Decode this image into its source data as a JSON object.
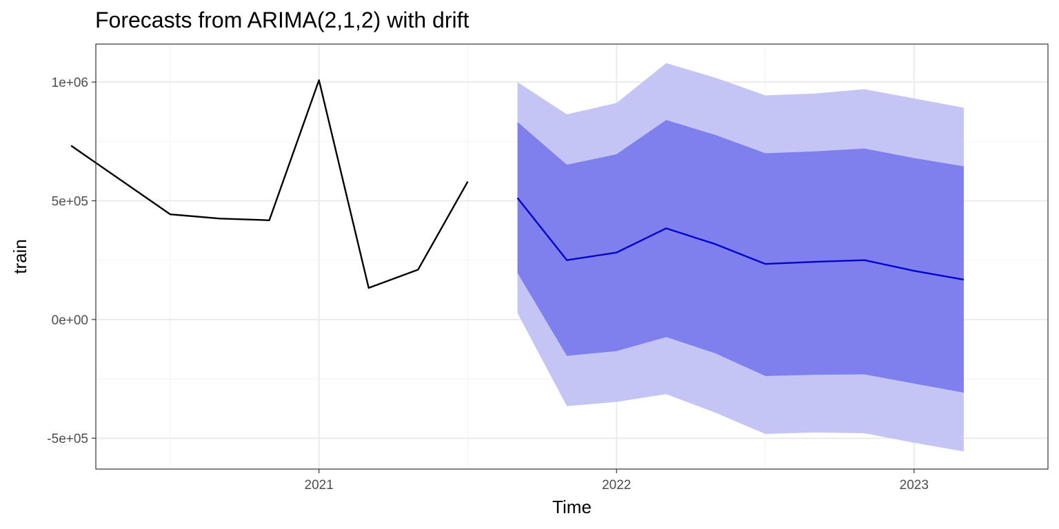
{
  "chart_data": {
    "type": "line",
    "title": "Forecasts from ARIMA(2,1,2) with drift",
    "xlabel": "Time",
    "ylabel": "train",
    "xlim": [
      2020.25,
      2023.45
    ],
    "ylim": [
      -630000,
      1160000
    ],
    "x_ticks": [
      {
        "value": 2021,
        "label": "2021"
      },
      {
        "value": 2022,
        "label": "2022"
      },
      {
        "value": 2023,
        "label": "2023"
      }
    ],
    "x_minor_ticks": [
      2020.5,
      2021.5,
      2022.5,
      2023.5
    ],
    "y_ticks": [
      {
        "value": 1000000,
        "label": "1e+06"
      },
      {
        "value": 500000,
        "label": "5e+05"
      },
      {
        "value": 0,
        "label": "0e+00"
      },
      {
        "value": -500000,
        "label": "-5e+05"
      }
    ],
    "y_minor_ticks": [
      750000,
      250000,
      -250000
    ],
    "grid": true,
    "colors": {
      "observed": "#000000",
      "forecast": "#0000cd",
      "band_80": "#7f7fee",
      "band_95": "#c4c4f5"
    },
    "series": [
      {
        "kind": "observed",
        "x": [
          2020.167,
          2020.5,
          2020.667,
          2020.833,
          2021.0,
          2021.167,
          2021.333,
          2021.5
        ],
        "y": [
          732000,
          443000,
          425000,
          418000,
          1008000,
          133000,
          210000,
          581000
        ]
      },
      {
        "kind": "forecast",
        "x": [
          2021.667,
          2021.833,
          2022.0,
          2022.167,
          2022.333,
          2022.5,
          2022.667,
          2022.833,
          2023.0,
          2023.167
        ],
        "y": [
          512000,
          250000,
          282000,
          384000,
          317000,
          234000,
          243000,
          250000,
          205000,
          168000
        ],
        "lo80": [
          196000,
          -153000,
          -133000,
          -74000,
          -143000,
          -238000,
          -233000,
          -231000,
          -270000,
          -308000
        ],
        "hi80": [
          832000,
          652000,
          696000,
          840000,
          777000,
          700000,
          708000,
          720000,
          680000,
          645000
        ],
        "lo95": [
          27000,
          -365000,
          -347000,
          -314000,
          -393000,
          -482000,
          -476000,
          -479000,
          -519000,
          -556000
        ],
        "hi95": [
          1000000,
          864000,
          912000,
          1080000,
          1018000,
          944000,
          952000,
          970000,
          931000,
          892000
        ]
      }
    ]
  }
}
